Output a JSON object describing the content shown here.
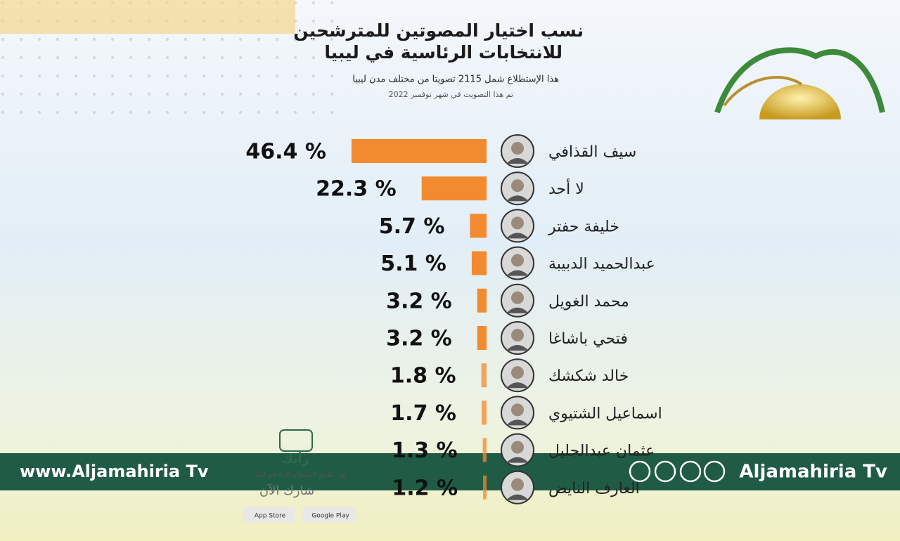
{
  "chart_data": {
    "type": "bar",
    "orientation": "horizontal",
    "title": [
      "نسب اختيار المصوتين للمترشحين",
      "للانتخابات الرئاسية في ليبيا"
    ],
    "subtitle": "هذا الإستطلاع شمل 2115 تصويتا من مختلف مدن ليبيا",
    "note": "تم هذا التصويت في شهر نوفمبر 2022",
    "categories": [
      "سيف القذافي",
      "لا أحد",
      "خليفة حفتر",
      "عبدالحميد الدبيبة",
      "محمد الغويل",
      "فتحي باشاغا",
      "خالد شكشك",
      "اسماعيل الشتيوي",
      "عثمان عبدالجليل",
      "العارف النايض"
    ],
    "values": [
      46.4,
      22.3,
      5.7,
      5.1,
      3.2,
      3.2,
      1.8,
      1.7,
      1.3,
      1.2
    ],
    "value_labels": [
      "46.4 %",
      "22.3 %",
      "5.7 %",
      "5.1 %",
      "3.2 %",
      "3.2 %",
      "1.8 %",
      "1.7 %",
      "1.3 %",
      "1.2 %"
    ],
    "color": "#f28a30"
  },
  "banner": {
    "left": "www.Aljamahiria Tv",
    "right": "Aljamahiria Tv"
  },
  "app": {
    "name": "رأيك",
    "tagline": "اول تطبيق لاستطلاع الاراء في ليبيا",
    "cta": "شارك الآن",
    "store1": "App Store",
    "store2": "Google Play"
  }
}
